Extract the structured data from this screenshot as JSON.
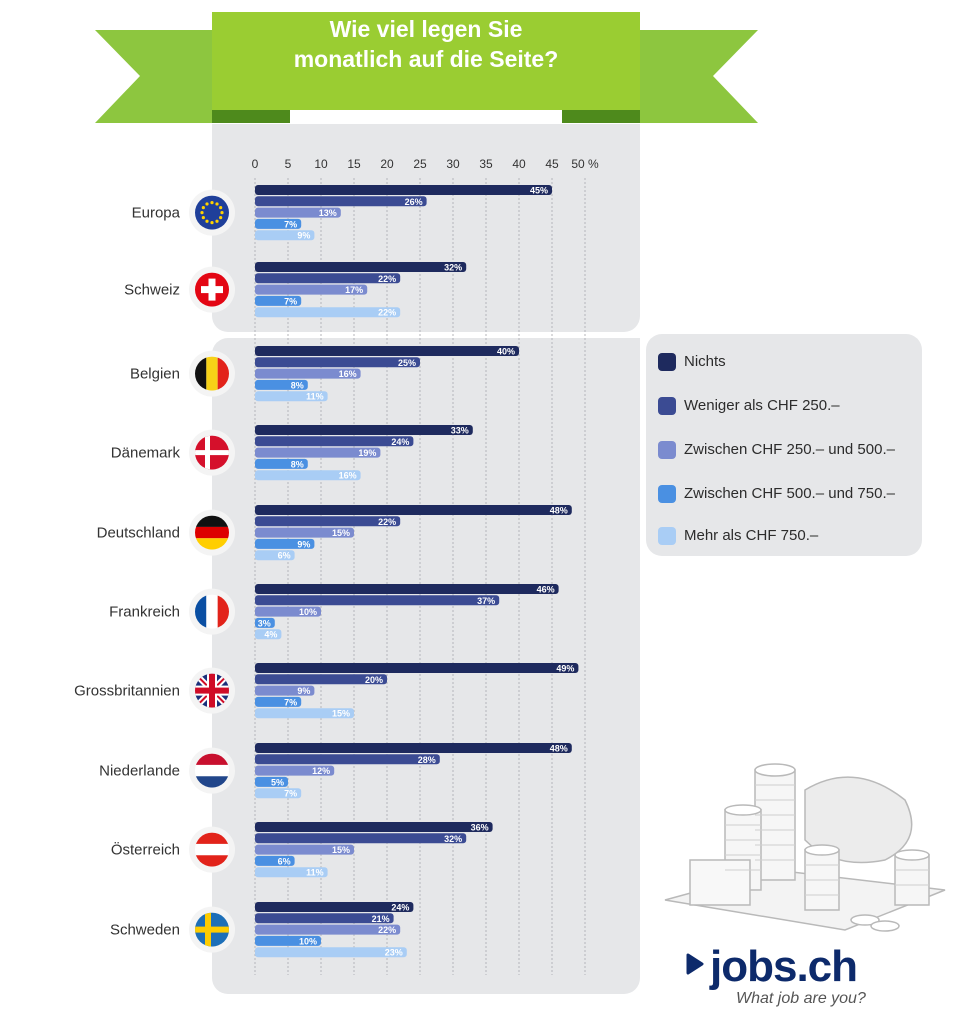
{
  "header": {
    "title_line1": "Wie viel legen Sie",
    "title_line2": "monatlich auf die Seite?"
  },
  "colors": {
    "banner": "#8dc63f",
    "banner_dark": "#4e8a1c",
    "series": [
      "#1e2a5e",
      "#3b4b93",
      "#7b8bcf",
      "#4a90e2",
      "#a9cdf5"
    ]
  },
  "chart_data": {
    "type": "bar",
    "orientation": "horizontal",
    "x_ticks": [
      "0",
      "5",
      "10",
      "15",
      "20",
      "25",
      "30",
      "35",
      "40",
      "45",
      "50 %"
    ],
    "xlim": [
      0,
      50
    ],
    "grid": true,
    "legend_position": "right",
    "categories": [
      "Europa",
      "Schweiz",
      "Belgien",
      "Dänemark",
      "Deutschland",
      "Frankreich",
      "Grossbritannien",
      "Niederlande",
      "Österreich",
      "Schweden"
    ],
    "series": [
      {
        "name": "Nichts",
        "values": [
          45,
          32,
          40,
          33,
          48,
          46,
          49,
          48,
          36,
          24
        ]
      },
      {
        "name": "Weniger als CHF 250.–",
        "values": [
          26,
          22,
          25,
          24,
          22,
          37,
          20,
          28,
          32,
          21
        ]
      },
      {
        "name": "Zwischen CHF 250.– und 500.–",
        "values": [
          13,
          17,
          16,
          19,
          15,
          10,
          9,
          12,
          15,
          22
        ]
      },
      {
        "name": "Zwischen CHF 500.– und 750.–",
        "values": [
          7,
          7,
          8,
          8,
          9,
          3,
          7,
          5,
          6,
          10
        ]
      },
      {
        "name": "Mehr als CHF 750.–",
        "values": [
          9,
          22,
          11,
          16,
          6,
          4,
          15,
          7,
          11,
          23
        ]
      }
    ],
    "flag_icons": [
      "eu-flag-icon",
      "swiss-flag-icon",
      "belgium-flag-icon",
      "denmark-flag-icon",
      "germany-flag-icon",
      "france-flag-icon",
      "uk-flag-icon",
      "netherlands-flag-icon",
      "austria-flag-icon",
      "sweden-flag-icon"
    ]
  },
  "logo": {
    "wordmark": "jobs.ch",
    "tagline": "What job are you?"
  }
}
